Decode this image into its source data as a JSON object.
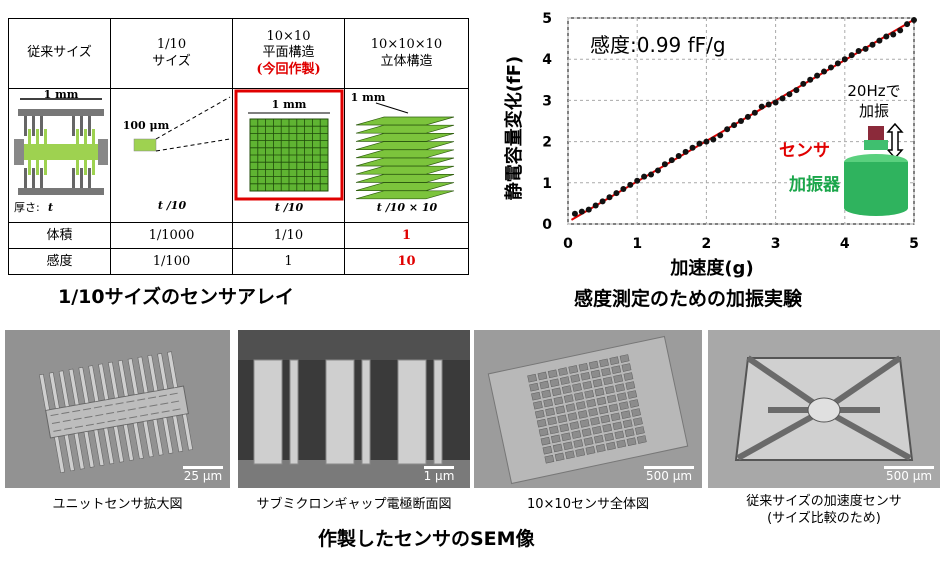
{
  "table": {
    "headers": [
      "従来サイズ",
      "1/10\nサイズ",
      "10×10\n平面構造",
      "(今回作製)",
      "10×10×10\n立体構造"
    ],
    "image_labels": {
      "conventional_width": "1 mm",
      "small_width": "100 μm",
      "planar_width": "1 mm",
      "stack_width": "1 mm",
      "thickness_label": "厚さ:",
      "thickness_var": "t",
      "t1": "t /10",
      "t2": "t /10",
      "t3": "t /10 × 10"
    },
    "rows": [
      {
        "label": "体積",
        "values": [
          "1/1000",
          "1/10",
          "1"
        ]
      },
      {
        "label": "感度",
        "values": [
          "1/100",
          "1",
          "10"
        ]
      }
    ]
  },
  "captions": {
    "table_caption": "1/10サイズのセンサアレイ",
    "chart_caption": "感度測定のための加振実験",
    "sem_caption": "作製したセンサのSEM像"
  },
  "chart_annotations": {
    "sensitivity": "感度:0.99 fF/g",
    "freq_line1": "20Hzで",
    "freq_line2": "加振",
    "sensor": "センサ",
    "shaker": "加振器"
  },
  "chart_data": {
    "type": "scatter",
    "xlabel": "加速度(g)",
    "ylabel": "静電容量変化(fF)",
    "xlim": [
      0,
      5
    ],
    "ylim": [
      0,
      5
    ],
    "xticks": [
      0,
      1,
      2,
      3,
      4,
      5
    ],
    "yticks": [
      0,
      1,
      2,
      3,
      4,
      5
    ],
    "grid": true,
    "series": [
      {
        "values": [
          [
            0.1,
            0.25
          ],
          [
            0.2,
            0.3
          ],
          [
            0.3,
            0.35
          ],
          [
            0.4,
            0.45
          ],
          [
            0.5,
            0.55
          ],
          [
            0.6,
            0.65
          ],
          [
            0.7,
            0.75
          ],
          [
            0.8,
            0.85
          ],
          [
            0.9,
            0.95
          ],
          [
            1.0,
            1.05
          ],
          [
            1.1,
            1.15
          ],
          [
            1.2,
            1.2
          ],
          [
            1.3,
            1.3
          ],
          [
            1.4,
            1.45
          ],
          [
            1.5,
            1.55
          ],
          [
            1.6,
            1.65
          ],
          [
            1.7,
            1.75
          ],
          [
            1.8,
            1.85
          ],
          [
            1.9,
            1.95
          ],
          [
            2.0,
            2.0
          ],
          [
            2.1,
            2.05
          ],
          [
            2.2,
            2.15
          ],
          [
            2.3,
            2.3
          ],
          [
            2.4,
            2.4
          ],
          [
            2.5,
            2.5
          ],
          [
            2.6,
            2.6
          ],
          [
            2.7,
            2.7
          ],
          [
            2.8,
            2.85
          ],
          [
            2.9,
            2.9
          ],
          [
            3.0,
            2.95
          ],
          [
            3.1,
            3.05
          ],
          [
            3.2,
            3.15
          ],
          [
            3.3,
            3.25
          ],
          [
            3.4,
            3.4
          ],
          [
            3.5,
            3.5
          ],
          [
            3.6,
            3.6
          ],
          [
            3.7,
            3.7
          ],
          [
            3.8,
            3.8
          ],
          [
            3.9,
            3.9
          ],
          [
            4.0,
            4.0
          ],
          [
            4.1,
            4.1
          ],
          [
            4.2,
            4.2
          ],
          [
            4.3,
            4.25
          ],
          [
            4.4,
            4.35
          ],
          [
            4.5,
            4.45
          ],
          [
            4.6,
            4.55
          ],
          [
            4.7,
            4.6
          ],
          [
            4.8,
            4.7
          ],
          [
            4.9,
            4.85
          ],
          [
            5.0,
            4.95
          ]
        ]
      },
      {
        "type": "line",
        "values": [
          [
            0.05,
            0.1
          ],
          [
            5.0,
            4.96
          ]
        ]
      }
    ]
  },
  "sem_images": [
    {
      "caption": "ユニットセンサ拡大図",
      "scale": "25 μm"
    },
    {
      "caption": "サブミクロンギャップ電極断面図",
      "scale": "1 μm"
    },
    {
      "caption": "10×10センサ全体図",
      "scale": "500 μm"
    },
    {
      "caption_line1": "従来サイズの加速度センサ",
      "caption_line2": "(サイズ比較のため)",
      "scale": "500 μm"
    }
  ]
}
